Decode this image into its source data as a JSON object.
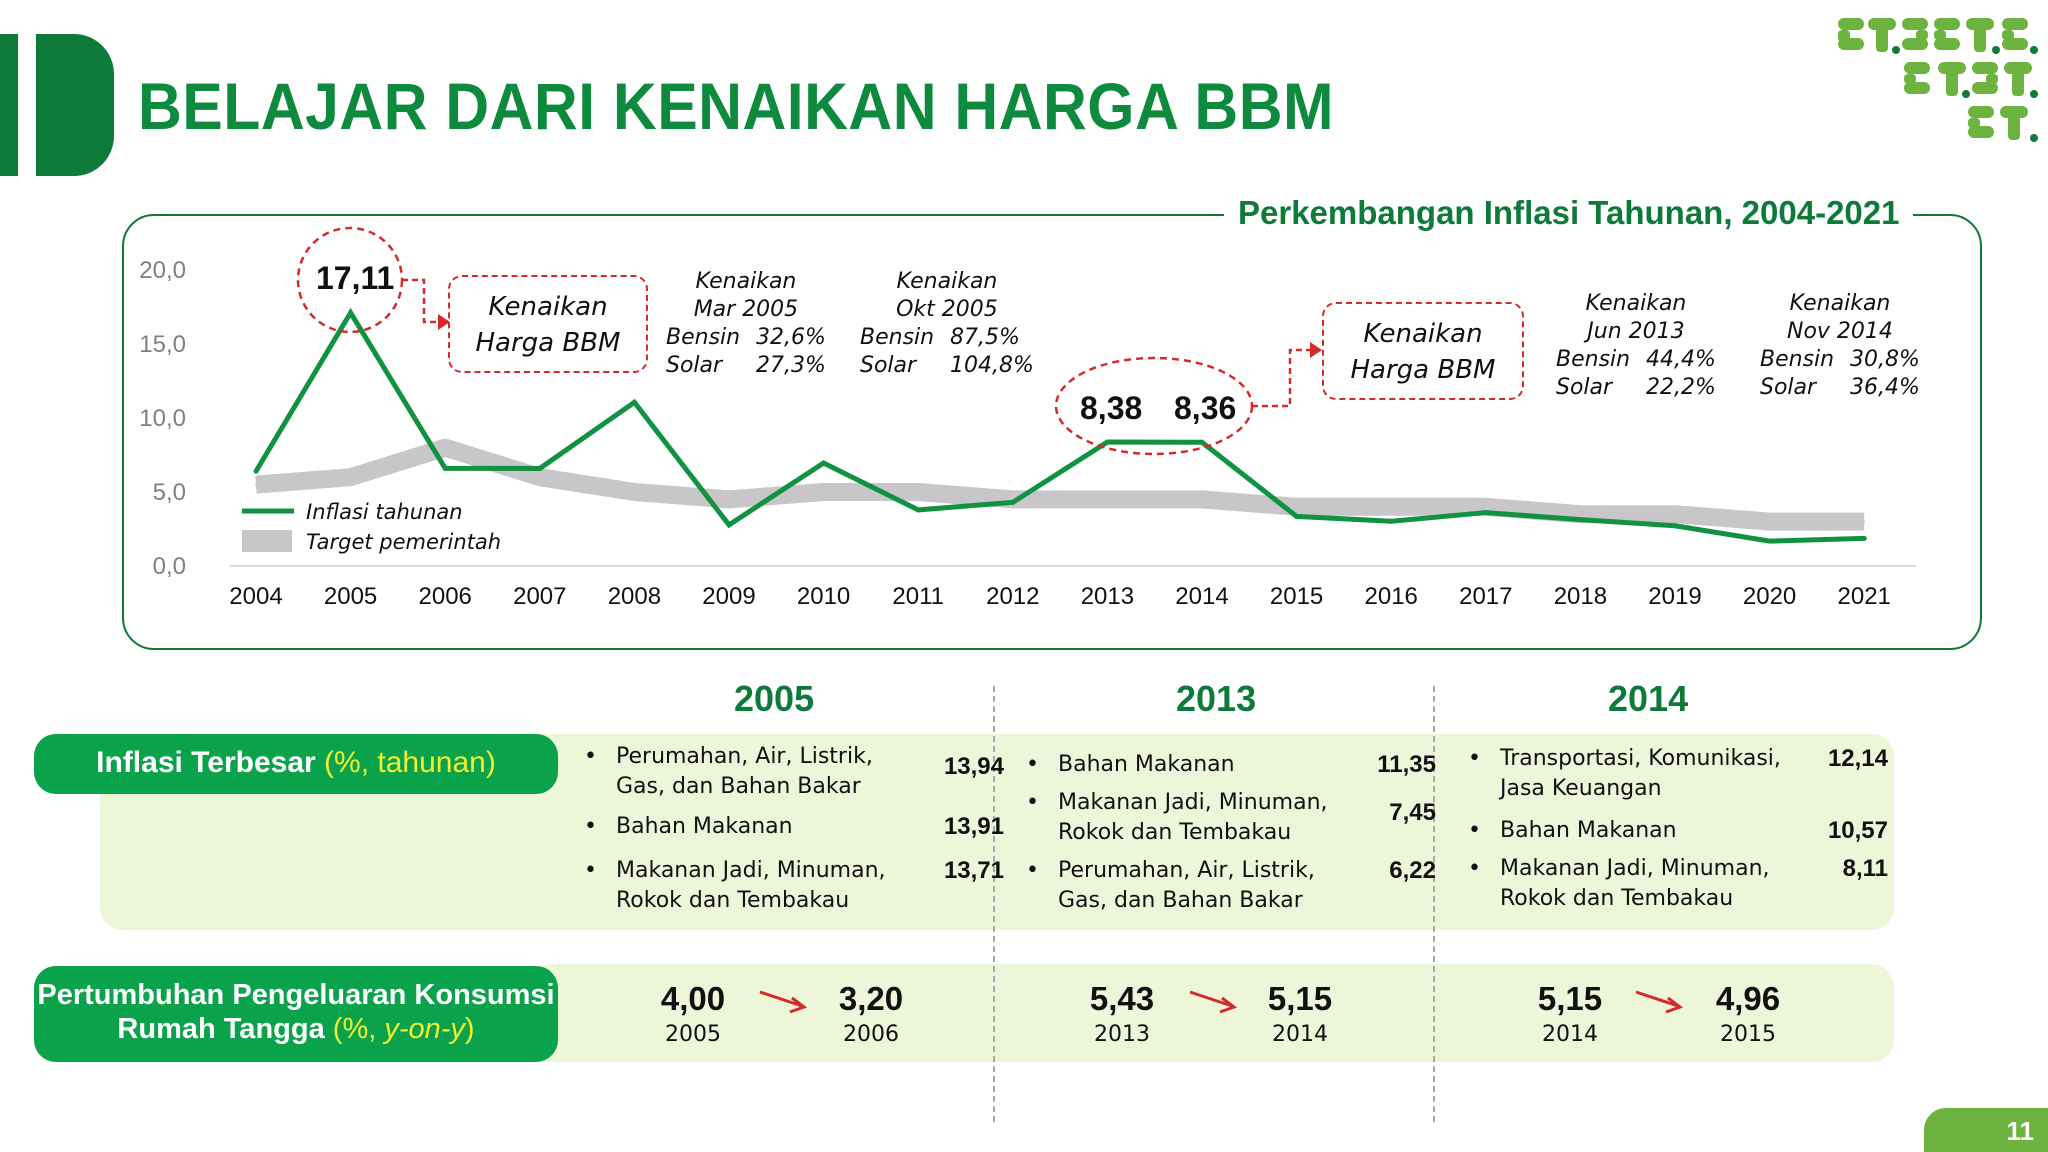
{
  "header": {
    "title": "BELAJAR DARI KENAIKAN HARGA BBM"
  },
  "colors": {
    "brand_green": "#0e7a3a",
    "line_green": "#119240",
    "target_gray": "#c8c6c8",
    "accent_red": "#d42a2a",
    "pill_green": "#0aa24a",
    "panel_light": "#eef6da",
    "accent_yellow": "#f2ee30"
  },
  "chart_data": {
    "type": "line",
    "title": "Perkembangan Inflasi Tahunan, 2004-2021",
    "x": [
      "2004",
      "2005",
      "2006",
      "2007",
      "2008",
      "2009",
      "2010",
      "2011",
      "2012",
      "2013",
      "2014",
      "2015",
      "2016",
      "2017",
      "2018",
      "2019",
      "2020",
      "2021"
    ],
    "ylim": [
      0,
      20
    ],
    "yticks": [
      "0,0",
      "5,0",
      "10,0",
      "15,0",
      "20,0"
    ],
    "series": [
      {
        "name": "Inflasi tahunan",
        "style": "line",
        "values": [
          6.4,
          17.11,
          6.6,
          6.59,
          11.06,
          2.78,
          6.96,
          3.79,
          4.3,
          8.38,
          8.36,
          3.35,
          3.02,
          3.61,
          3.13,
          2.72,
          1.68,
          1.87
        ]
      },
      {
        "name": "Target pemerintah",
        "style": "band",
        "values": [
          5.5,
          6.0,
          8.0,
          6.0,
          5.0,
          4.5,
          5.0,
          5.0,
          4.5,
          4.5,
          4.5,
          4.0,
          4.0,
          4.0,
          3.5,
          3.5,
          3.0,
          3.0
        ]
      }
    ],
    "legend": {
      "line": "Inflasi tahunan",
      "band": "Target pemerintah"
    },
    "callouts": {
      "peak_2005": "17,11",
      "v2013": "8,38",
      "v2014": "8,36"
    },
    "annotations": {
      "box1": [
        "Kenaikan",
        "Harga BBM"
      ],
      "box2": [
        "Kenaikan",
        "Harga BBM"
      ],
      "a1": {
        "head1": "Kenaikan",
        "head2": "Mar 2005",
        "r1k": "Bensin",
        "r1v": "32,6%",
        "r2k": "Solar",
        "r2v": "27,3%"
      },
      "a2": {
        "head1": "Kenaikan",
        "head2": "Okt 2005",
        "r1k": "Bensin",
        "r1v": "87,5%",
        "r2k": "Solar",
        "r2v": "104,8%"
      },
      "a3": {
        "head1": "Kenaikan",
        "head2": "Jun 2013",
        "r1k": "Bensin",
        "r1v": "44,4%",
        "r2k": "Solar",
        "r2v": "22,2%"
      },
      "a4": {
        "head1": "Kenaikan",
        "head2": "Nov 2014",
        "r1k": "Bensin",
        "r1v": "30,8%",
        "r2k": "Solar",
        "r2v": "36,4%"
      }
    }
  },
  "years": [
    "2005",
    "2013",
    "2014"
  ],
  "inflasi_terbesar": {
    "label": "Inflasi Terbesar",
    "unit": "(%, tahunan)",
    "columns": [
      {
        "items": [
          {
            "lines": [
              "Perumahan, Air, Listrik,",
              "Gas, dan Bahan Bakar"
            ],
            "value": "13,94"
          },
          {
            "lines": [
              "Bahan Makanan"
            ],
            "value": "13,91"
          },
          {
            "lines": [
              "Makanan Jadi, Minuman,",
              "Rokok dan Tembakau"
            ],
            "value": "13,71"
          }
        ]
      },
      {
        "items": [
          {
            "lines": [
              "Bahan Makanan"
            ],
            "value": "11,35"
          },
          {
            "lines": [
              "Makanan Jadi, Minuman,",
              "Rokok dan Tembakau"
            ],
            "value": "7,45"
          },
          {
            "lines": [
              "Perumahan, Air, Listrik,",
              "Gas, dan Bahan Bakar"
            ],
            "value": "6,22"
          }
        ]
      },
      {
        "items": [
          {
            "lines": [
              "Transportasi, Komunikasi,",
              "Jasa Keuangan"
            ],
            "value": "12,14"
          },
          {
            "lines": [
              "Bahan Makanan"
            ],
            "value": "10,57"
          },
          {
            "lines": [
              "Makanan Jadi, Minuman,",
              "Rokok dan Tembakau"
            ],
            "value": "8,11"
          }
        ]
      }
    ]
  },
  "konsumsi": {
    "label_line1": "Pertumbuhan Pengeluaran Konsumsi",
    "label_line2": "Rumah Tangga",
    "unit_prefix": "(%, ",
    "unit_em": "y-on-y",
    "unit_suffix": ")",
    "pairs": [
      {
        "v1": "4,00",
        "y1": "2005",
        "v2": "3,20",
        "y2": "2006"
      },
      {
        "v1": "5,43",
        "y1": "2013",
        "v2": "5,15",
        "y2": "2014"
      },
      {
        "v1": "5,15",
        "y1": "2014",
        "v2": "4,96",
        "y2": "2015"
      }
    ]
  },
  "page_number": "11"
}
